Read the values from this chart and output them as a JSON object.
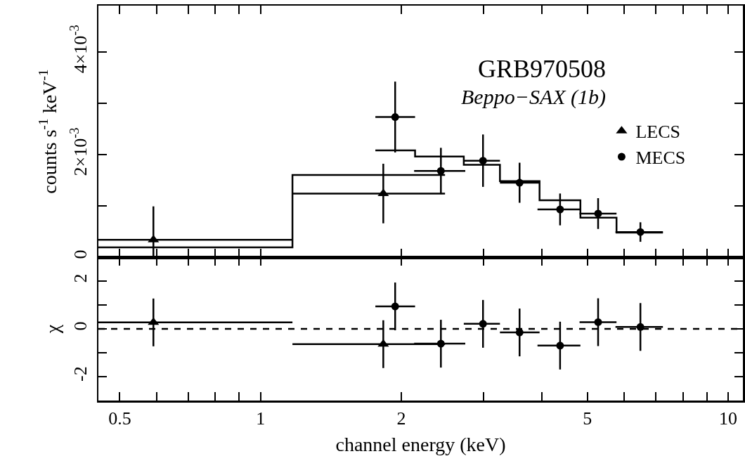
{
  "chart_data": [
    {
      "type": "scatter",
      "title": "GRB970508",
      "subtitle": "Beppo−SAX (1b)",
      "ylabel": "counts s$^{-1}$ keV$^{-1}$",
      "log": "x",
      "legend": "right",
      "tick_labels": "y",
      "xlim": [
        0.45,
        10.75
      ],
      "xticks": [
        {
          "value": 0.5,
          "label": null
        },
        {
          "value": 0.6,
          "label": null
        },
        {
          "value": 0.7,
          "label": null
        },
        {
          "value": 0.8,
          "label": null
        },
        {
          "value": 0.9,
          "label": null
        },
        {
          "value": 1,
          "label": null
        },
        {
          "value": 2,
          "label": null
        },
        {
          "value": 3,
          "label": null
        },
        {
          "value": 4,
          "label": null
        },
        {
          "value": 5,
          "label": null
        },
        {
          "value": 6,
          "label": null
        },
        {
          "value": 7,
          "label": null
        },
        {
          "value": 8,
          "label": null
        },
        {
          "value": 9,
          "label": null
        },
        {
          "value": 10,
          "label": null
        }
      ],
      "ylim": [
        0,
        0.0049
      ],
      "yticks": [
        0,
        {
          "value": 0.001,
          "label": null
        },
        {
          "value": 0.002,
          "label": "2×10$^{-3}$"
        },
        {
          "value": 0.003,
          "label": null
        },
        {
          "value": 0.004,
          "label": "4×10$^{-3}$"
        }
      ],
      "series": [
        {
          "name": "LECS",
          "marker": "triangle",
          "color": "#000000",
          "x": [
            0.59,
            1.83
          ],
          "values": [
            0.00034,
            0.00124
          ],
          "errors": [
            [
              0,
              0.00099
            ],
            0.00058
          ],
          "xerrors": [
            [
              0.45,
              1.17
            ],
            [
              1.17,
              2.48
            ]
          ]
        },
        {
          "name": "MECS",
          "marker": "circle",
          "color": "#000000",
          "x": [
            1.94,
            2.43,
            2.99,
            3.58,
            4.37,
            5.27,
            6.49
          ],
          "values": [
            0.00273,
            0.00168,
            0.00188,
            0.00145,
            0.00093,
            0.00085,
            0.00049
          ],
          "errors": [
            0.00069,
            0.00045,
            0.00051,
            0.00039,
            0.00031,
            0.0003,
            0.00019
          ],
          "xerrors": [
            [
              1.76,
              2.14
            ],
            [
              2.13,
              2.74
            ],
            [
              2.72,
              3.25
            ],
            [
              3.25,
              3.95
            ],
            [
              3.91,
              4.83
            ],
            [
              4.81,
              5.77
            ],
            [
              5.74,
              7.25
            ]
          ]
        },
        {
          "type": "step",
          "color": "#000000",
          "x": [
            0.45,
            1.17,
            2.48
          ],
          "values": [
            0.00019,
            0.0016,
            0.0016
          ]
        },
        {
          "type": "step",
          "color": "#000000",
          "x": [
            1.76,
            2.14,
            2.72,
            3.25,
            3.95,
            4.83,
            5.77,
            7.25
          ],
          "values": [
            0.00208,
            0.00196,
            0.0018,
            0.00148,
            0.00111,
            0.00077,
            0.00048,
            0.00048
          ]
        }
      ]
    },
    {
      "type": "scatter",
      "xlabel": "channel energy (keV)",
      "ylabel": "χ",
      "log": "x",
      "xlim": [
        0.45,
        10.75
      ],
      "xticks": [
        0.5,
        {
          "value": 0.6,
          "label": null
        },
        {
          "value": 0.7,
          "label": null
        },
        {
          "value": 0.8,
          "label": null
        },
        {
          "value": 0.9,
          "label": null
        },
        1,
        2,
        {
          "value": 3,
          "label": null
        },
        {
          "value": 4,
          "label": null
        },
        5,
        {
          "value": 6,
          "label": null
        },
        {
          "value": 7,
          "label": null
        },
        {
          "value": 8,
          "label": null
        },
        {
          "value": 9,
          "label": null
        },
        10
      ],
      "ylim": [
        -3,
        3
      ],
      "yticks": [
        -2,
        {
          "value": -1,
          "label": null
        },
        0,
        {
          "value": 1,
          "label": null
        },
        2
      ],
      "ref_lines": [
        {
          "axis": "y",
          "value": 0,
          "line_style": "dashed",
          "color": "#000000"
        }
      ],
      "series": [
        {
          "marker": "triangle",
          "color": "#000000",
          "x": [
            0.59,
            1.83
          ],
          "values": [
            0.27,
            -0.64
          ],
          "errors": [
            1,
            1
          ],
          "xerrors": [
            [
              0.45,
              1.17
            ],
            [
              1.17,
              2.48
            ]
          ]
        },
        {
          "marker": "circle",
          "color": "#000000",
          "x": [
            1.94,
            2.43,
            2.99,
            3.58,
            4.37,
            5.27,
            6.49
          ],
          "values": [
            0.94,
            -0.62,
            0.21,
            -0.15,
            -0.7,
            0.28,
            0.08
          ],
          "errors": [
            1,
            1,
            1,
            1,
            1,
            1,
            1
          ],
          "xerrors": [
            [
              1.76,
              2.14
            ],
            [
              2.13,
              2.74
            ],
            [
              2.72,
              3.25
            ],
            [
              3.25,
              3.95
            ],
            [
              3.91,
              4.83
            ],
            [
              4.81,
              5.77
            ],
            [
              5.74,
              7.25
            ]
          ]
        }
      ]
    }
  ]
}
